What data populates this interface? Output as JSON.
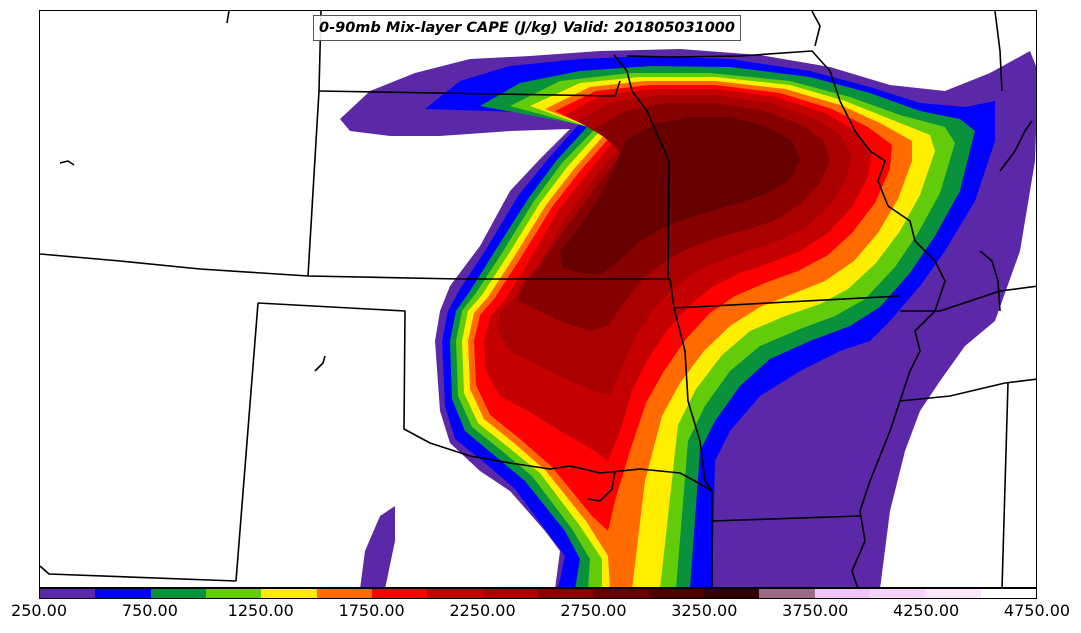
{
  "title": "0-90mb Mix-layer CAPE (J/kg) Valid: 201805031000",
  "colorbar": {
    "colors": [
      "#5b29a8",
      "#0000ff",
      "#09913b",
      "#62cc0b",
      "#ffee00",
      "#ff6b00",
      "#ff0000",
      "#c50000",
      "#a90000",
      "#870000",
      "#660000",
      "#4b0000",
      "#310000",
      "#9b6a85",
      "#f3c4f7",
      "#f7d2f9",
      "#fbe7fc",
      "#ffffff"
    ],
    "tick_labels": [
      "250.00",
      "750.00",
      "1250.00",
      "1750.00",
      "2250.00",
      "2750.00",
      "3250.00",
      "3750.00",
      "4250.00",
      "4750.00"
    ]
  },
  "map": {
    "fill_colors": {
      "l250": "#5b29a8",
      "l500": "#0000ff",
      "l750": "#09913b",
      "l1000": "#62cc0b",
      "l1250": "#ffee00",
      "l1500": "#ff6b00",
      "l1750": "#ff0000",
      "l2000": "#c50000",
      "l2250": "#a90000",
      "l2500": "#870000",
      "l2750": "#660000"
    },
    "boundary_color": "#000000"
  }
}
